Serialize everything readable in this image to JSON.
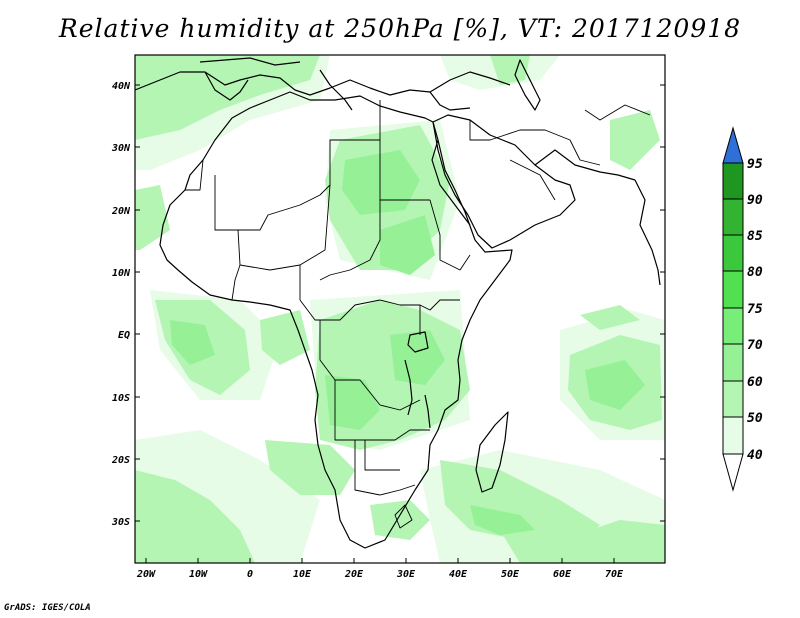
{
  "title": "Relative humidity at 250hPa [%], VT: 2017120918",
  "footer": "GrADS: IGES/COLA",
  "map": {
    "lon_range": [
      -22,
      80
    ],
    "lat_range": [
      -37,
      45
    ],
    "lat_ticks": [
      "40N",
      "30N",
      "20N",
      "10N",
      "EQ",
      "10S",
      "20S",
      "30S"
    ],
    "lon_ticks": [
      "20W",
      "10W",
      "0",
      "10E",
      "20E",
      "30E",
      "40E",
      "50E",
      "60E",
      "70E"
    ],
    "fill_colors": {
      "rh_40_50": "#e6fce6",
      "rh_50_60": "#b4f5b4",
      "rh_60_70": "#96f096",
      "land_outline": "#000000",
      "background": "#ffffff"
    }
  },
  "colorbar": {
    "labels": [
      "95",
      "90",
      "85",
      "80",
      "75",
      "70",
      "60",
      "50",
      "40"
    ],
    "colors": [
      "#1e9620",
      "#32b432",
      "#3cc83c",
      "#50e050",
      "#78ee78",
      "#96f096",
      "#b4f5b4",
      "#e6fce6"
    ],
    "over_color": "#2e6fd8",
    "under_color": "#ffffff"
  }
}
